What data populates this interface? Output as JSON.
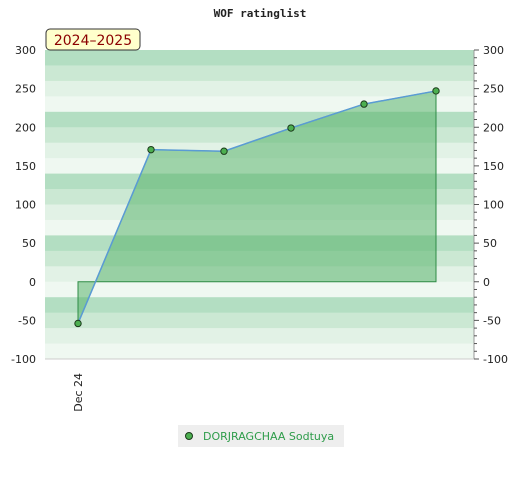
{
  "chart_data": {
    "type": "area",
    "title": "WOF ratinglist",
    "season_label": "2024–2025",
    "xlabel": "",
    "ylabel": "",
    "ylim": [
      -100,
      300
    ],
    "yticks": [
      -100,
      -50,
      0,
      50,
      100,
      150,
      200,
      250,
      300
    ],
    "x_tick_labels": [
      "Dec 24"
    ],
    "grid": true,
    "legend_position": "bottom-center",
    "series": [
      {
        "name": "DORJRAGCHAA Sodtuya",
        "values": [
          -54,
          171,
          169,
          199,
          230,
          247
        ]
      }
    ],
    "colors": {
      "fill": "#5bb56e",
      "fill_opacity": 0.55,
      "line": "#5a9bd5",
      "marker": "#4caf50",
      "legend_text": "#2e9c4a",
      "band_dark": "#b3dec2",
      "band_mid": "#cbe8d3",
      "band_light": "#e2f2e6",
      "band_faint": "#eff8f1"
    }
  }
}
